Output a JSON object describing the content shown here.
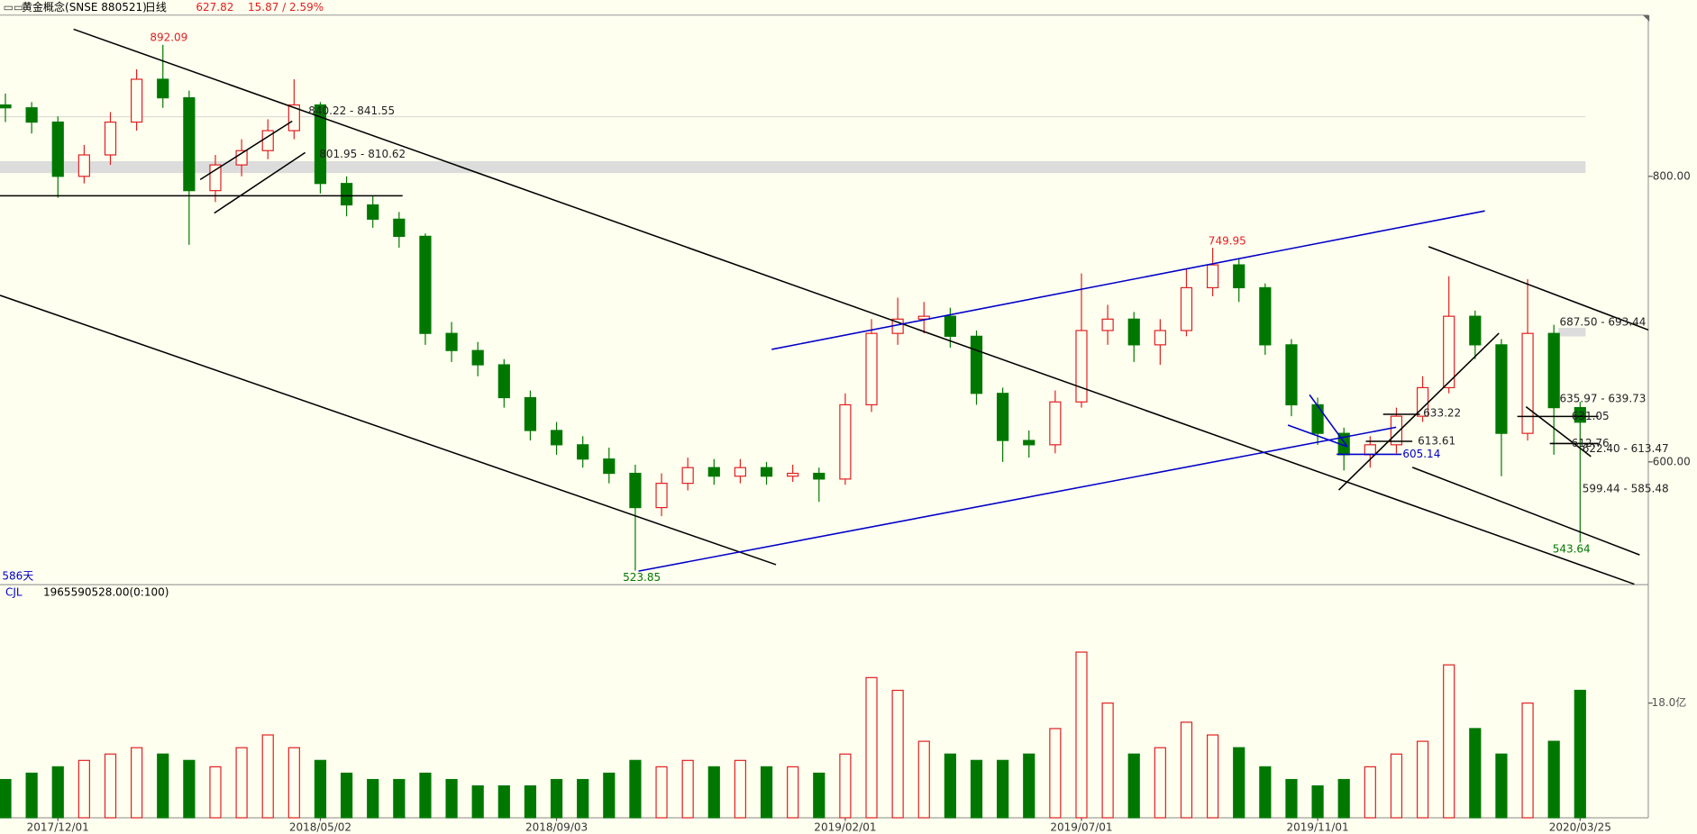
{
  "header": {
    "title": "黄金概念(SNSE 880521)",
    "period": "日线",
    "price": "627.82",
    "change": "15.87 / 2.59%",
    "span": "586天",
    "indicator": "CJL",
    "indicator_value": "1965590528.00(0:100)"
  },
  "chart_data": [
    {
      "type": "candlestick",
      "up_color": "#e02020",
      "down_color": "#007800",
      "open": [
        850,
        848,
        838,
        800,
        815,
        838,
        868,
        855,
        790,
        808,
        818,
        832,
        850,
        795,
        780,
        770,
        758,
        690,
        678,
        668,
        645,
        622,
        612,
        602,
        592,
        568,
        585,
        596,
        590,
        596,
        590,
        592,
        588,
        640,
        690,
        700,
        702,
        688,
        648,
        615,
        612,
        642,
        692,
        700,
        682,
        692,
        722,
        738,
        722,
        682,
        640,
        620,
        605,
        612,
        632,
        652,
        702,
        682,
        620,
        690,
        638
      ],
      "high": [
        858,
        852,
        842,
        822,
        845,
        875,
        892.09,
        860,
        815,
        826,
        840,
        868,
        852,
        800,
        786,
        775,
        760,
        698,
        684,
        672,
        650,
        628,
        618,
        610,
        598,
        592,
        603,
        602,
        602,
        600,
        598,
        596,
        648,
        700,
        715,
        712,
        708,
        692,
        652,
        622,
        650,
        732,
        710,
        705,
        700,
        735,
        749.95,
        742,
        725,
        686,
        645,
        624,
        618,
        638,
        660,
        730,
        706,
        686,
        728,
        696,
        642
      ],
      "low": [
        838,
        830,
        785,
        795,
        808,
        832,
        848,
        752,
        782,
        800,
        812,
        826,
        788,
        772,
        764,
        750,
        682,
        670,
        660,
        638,
        615,
        605,
        596,
        585,
        523.85,
        562,
        580,
        584,
        585,
        584,
        586,
        572,
        584,
        635,
        682,
        690,
        680,
        640,
        600,
        603,
        606,
        638,
        682,
        670,
        668,
        688,
        716,
        712,
        675,
        632,
        612,
        594,
        596,
        606,
        628,
        648,
        672,
        590,
        615,
        605,
        543.64
      ],
      "close": [
        848,
        838,
        800,
        815,
        838,
        868,
        855,
        790,
        808,
        818,
        832,
        850,
        795,
        780,
        770,
        758,
        690,
        678,
        668,
        645,
        622,
        612,
        602,
        592,
        568,
        585,
        596,
        590,
        596,
        590,
        592,
        588,
        640,
        690,
        700,
        702,
        688,
        648,
        615,
        612,
        642,
        692,
        700,
        682,
        692,
        722,
        738,
        722,
        682,
        640,
        620,
        605,
        612,
        632,
        652,
        702,
        682,
        620,
        690,
        638,
        627.82
      ],
      "ylim": [
        514.4,
        912.9
      ],
      "yticks": [
        {
          "value": 600,
          "label": "600.00"
        },
        {
          "value": 800,
          "label": "800.00"
        }
      ],
      "annotations": [
        "892.09",
        "523.85",
        "749.95",
        "543.64",
        "840.22 - 841.55",
        "801.95 - 810.62",
        "687.50 - 693.44",
        "635.97 - 639.73",
        "633.22",
        "631.05",
        "613.61",
        "612.76",
        "605.14",
        "622.40 - 613.47",
        "599.44 - 585.48"
      ]
    },
    {
      "type": "bar",
      "categories": [
        null,
        null,
        "2017/12/01",
        null,
        null,
        null,
        null,
        null,
        null,
        null,
        null,
        null,
        "2018/05/02",
        null,
        null,
        null,
        null,
        null,
        null,
        null,
        null,
        "2018/09/03",
        null,
        null,
        null,
        null,
        null,
        null,
        null,
        null,
        null,
        null,
        "2019/02/01",
        null,
        null,
        null,
        null,
        null,
        null,
        null,
        null,
        "2019/07/01",
        null,
        null,
        null,
        null,
        null,
        null,
        null,
        null,
        "2019/11/01",
        null,
        null,
        null,
        null,
        null,
        null,
        null,
        null,
        null,
        "2020/03/25"
      ],
      "values": [
        6,
        7,
        8,
        9,
        10,
        11,
        10,
        9,
        8,
        11,
        13,
        11,
        9,
        7,
        6,
        6,
        7,
        6,
        5,
        5,
        5,
        6,
        6,
        7,
        9,
        8,
        9,
        8,
        9,
        8,
        8,
        7,
        10,
        22,
        20,
        12,
        10,
        9,
        9,
        10,
        14,
        26,
        18,
        10,
        11,
        15,
        13,
        11,
        8,
        6,
        5,
        6,
        8,
        10,
        12,
        24,
        14,
        10,
        18,
        12,
        20
      ],
      "ylim": [
        0,
        36.5
      ],
      "yticks": [
        {
          "value": 18,
          "label": "18.0亿"
        }
      ]
    }
  ]
}
